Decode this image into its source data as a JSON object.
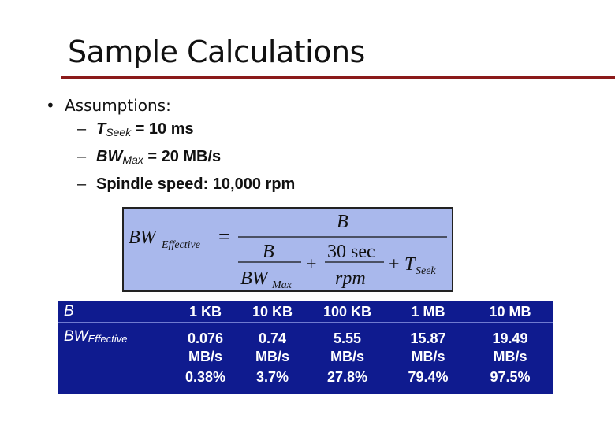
{
  "slide": {
    "title": "Sample Calculations",
    "bullet": "Assumptions:",
    "bullet_marker": "•",
    "sub_marker": "–",
    "assumptions": [
      {
        "var": "T",
        "sub": "Seek",
        "rest": " = 10 ms"
      },
      {
        "var": "BW",
        "sub": "Max",
        "rest": " = 20 MB/s"
      },
      {
        "text": "Spindle speed: 10,000 rpm"
      }
    ]
  },
  "formula": {
    "lhs": "BW",
    "lhs_sub": "Effective",
    "eq": "=",
    "top_num": "B",
    "inner_num": "B",
    "inner_den": "BW",
    "inner_den_sub": "Max",
    "plus1": "+",
    "mid_num": "30 sec",
    "mid_den": "rpm",
    "plus2": "+",
    "tseek": "T",
    "tseek_sub": "Seek"
  },
  "table": {
    "row_label_b": "B",
    "row_label_bw": "BW",
    "row_label_bw_sub": "Effective",
    "columns": [
      {
        "b": "1 KB",
        "bw": "0.076",
        "unit": "MB/s",
        "pct": "0.38%"
      },
      {
        "b": "10 KB",
        "bw": "0.74",
        "unit": "MB/s",
        "pct": "3.7%"
      },
      {
        "b": "100 KB",
        "bw": "5.55",
        "unit": "MB/s",
        "pct": "27.8%"
      },
      {
        "b": "1 MB",
        "bw": "15.87",
        "unit": "MB/s",
        "pct": "79.4%"
      },
      {
        "b": "10 MB",
        "bw": "19.49",
        "unit": "MB/s",
        "pct": "97.5%"
      }
    ]
  },
  "colors": {
    "title_rule": "#8b1a1a",
    "formula_bg": "#a9b8ec",
    "table_bg": "#0f1b8f",
    "table_text": "#ffffff"
  }
}
